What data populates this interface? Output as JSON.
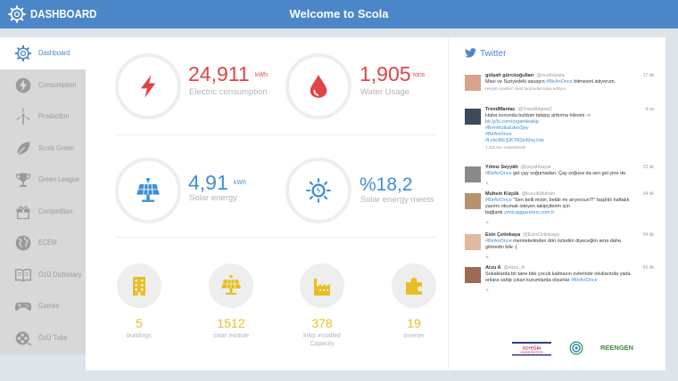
{
  "header": {
    "app_name": "DASHBOARD",
    "title": "Welcome to Scola"
  },
  "sidebar": {
    "items": [
      {
        "label": "Dashboard",
        "icon": "gear-icon",
        "active": true
      },
      {
        "label": "Consumption",
        "icon": "bolt-icon"
      },
      {
        "label": "Production",
        "icon": "wind-turbine-icon"
      },
      {
        "label": "Scola Green",
        "icon": "leaf-icon"
      },
      {
        "label": "Green League",
        "icon": "trophy-icon"
      },
      {
        "label": "Competition",
        "icon": "gift-icon"
      },
      {
        "label": "EÇEM",
        "icon": "globe-icon"
      },
      {
        "label": "ÖzÜ Dictionary",
        "icon": "book-icon"
      },
      {
        "label": "Games",
        "icon": "gamepad-icon"
      },
      {
        "label": "ÖzÜ Tube",
        "icon": "film-icon"
      }
    ]
  },
  "stats": {
    "electric": {
      "value": "24,911",
      "unit": "kWh",
      "label": "Electric consumption",
      "color": "#e04545"
    },
    "water": {
      "value": "1,905",
      "unit": "tons",
      "label": "Water Usage",
      "color": "#e04545"
    },
    "solar": {
      "value": "4,91",
      "unit": "kWh",
      "label": "Solar energy",
      "color": "#3c8fd6"
    },
    "solar_meets": {
      "value": "%18,2",
      "label": "Solar energy meets",
      "color": "#3c8fd6"
    }
  },
  "facts": [
    {
      "value": "5",
      "label": "buildings",
      "icon": "building-icon"
    },
    {
      "value": "1512",
      "label": "solar module",
      "icon": "solar-panel-icon"
    },
    {
      "value": "378",
      "label": "kWp installed Capacity",
      "icon": "factory-icon"
    },
    {
      "value": "19",
      "label": "inverter",
      "icon": "puzzle-icon"
    }
  ],
  "twitter": {
    "title": "Twitter",
    "tweets": [
      {
        "name": "gülşah gürcüoğulları",
        "handle": "@ocebazara",
        "time": "17 dk",
        "lines": [
          "Mavi ve Suriyedeki savaşın #BirAnOnce bitmesini istiyorum."
        ],
        "meta": "Hergün Hadise'i Şerif tarafından takip ediliyor"
      },
      {
        "name": "TrendManiac",
        "handle": "@TrendManiaC",
        "time": "4 sa",
        "lines": [
          "Haha sonunda buldum takipçi arttırma hilesini ->",
          "bit.ly/lx.com/organiktakip",
          "#BenMutluEdenŞey",
          "#BirAnOnce",
          "#LiderBEŞİKTAŞinMaçıVar"
        ],
        "meta": "1,303 kez retweetlendi"
      },
      {
        "name": "Yılmız Seyyâh",
        "handle": "@seyahhayat",
        "time": "23 dk",
        "lines": [
          "#BirAnOnce gel çay soğumadan. Çay soğusa da sen gel yine de."
        ]
      },
      {
        "name": "Muhsin Küçük",
        "handle": "@kucukMuhsin",
        "time": "34 dk",
        "lines": [
          "#BirAnOnce \"Sen belli misin, belâlı mı arıyorsun?!\" başlıklı haftalık",
          "yazımı okumak isteyen takipçilerim için",
          "bağlantı yenicaggazetesi.com.tr"
        ]
      },
      {
        "name": "Esin Çetinkaya",
        "handle": "@EsinCetinkaya",
        "time": "54 dk",
        "lines": [
          "#BirAnOnce memleketinden dön özledim diyeceğim ama daha",
          "gitmedin bile :("
        ]
      },
      {
        "name": "Arzu A",
        "handle": "@Arzu_A",
        "time": "55 dk",
        "lines": [
          "Sokaklarda bir tane bile çocuk kalmasın evlerinde okullarında yada",
          "onlara sahip çıkan kurumlarda olsunlar #BirAnOnce"
        ]
      }
    ]
  },
  "partners": {
    "university": "ÖZYEĞİN ÜNİVERSİTESİ",
    "reengen": "REENGEN"
  }
}
